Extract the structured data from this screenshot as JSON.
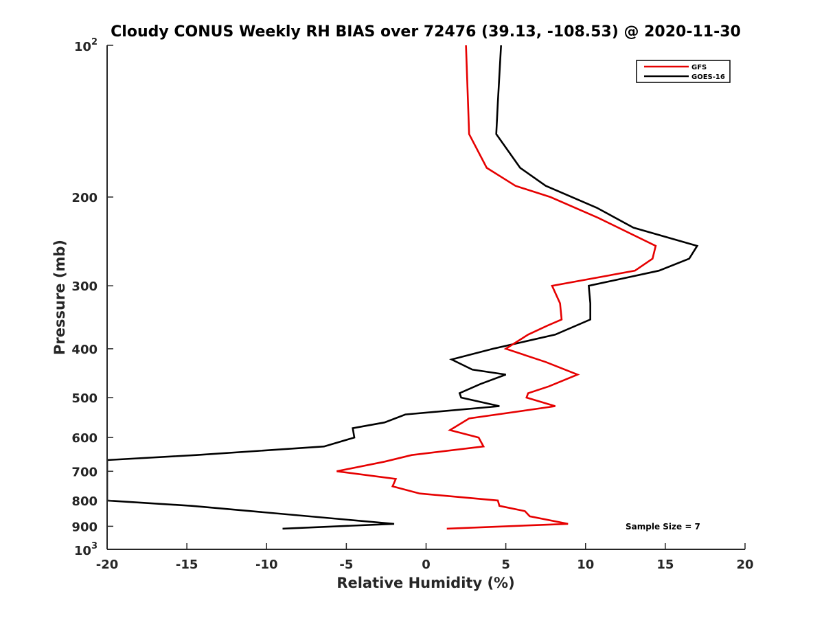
{
  "chart_data": {
    "type": "line",
    "title": "Cloudy CONUS Weekly RH BIAS over 72476 (39.13, -108.53) @ 2020-11-30",
    "xlabel": "Relative Humidity (%)",
    "ylabel": "Pressure (mb)",
    "xlim": [
      -20,
      20
    ],
    "ylim": [
      100,
      1000
    ],
    "yscale": "log",
    "y_reversed": true,
    "grid": false,
    "legend_location": "top-right",
    "x_ticks": [
      "-20",
      "-15",
      "-10",
      "-5",
      "0",
      "5",
      "10",
      "15",
      "20"
    ],
    "x_tick_values": [
      -20,
      -15,
      -10,
      -5,
      0,
      5,
      10,
      15,
      20
    ],
    "y_ticks": [
      {
        "value": 100,
        "base": "10",
        "exp": "2"
      },
      {
        "value": 200,
        "label": "200"
      },
      {
        "value": 300,
        "label": "300"
      },
      {
        "value": 400,
        "label": "400"
      },
      {
        "value": 500,
        "label": "500"
      },
      {
        "value": 600,
        "label": "600"
      },
      {
        "value": 700,
        "label": "700"
      },
      {
        "value": 800,
        "label": "800"
      },
      {
        "value": 900,
        "label": "900"
      },
      {
        "value": 1000,
        "base": "10",
        "exp": "3"
      }
    ],
    "annotation": "Sample Size = 7",
    "series": [
      {
        "name": "GFS",
        "color": "#e60000",
        "points": [
          [
            2.5,
            100
          ],
          [
            2.7,
            150
          ],
          [
            3.8,
            175
          ],
          [
            5.6,
            190
          ],
          [
            7.8,
            200
          ],
          [
            10.8,
            220
          ],
          [
            14.4,
            250
          ],
          [
            14.2,
            265
          ],
          [
            13.1,
            280
          ],
          [
            7.9,
            300
          ],
          [
            8.4,
            325
          ],
          [
            8.5,
            350
          ],
          [
            7.6,
            360
          ],
          [
            6.4,
            375
          ],
          [
            5.0,
            400
          ],
          [
            7.5,
            425
          ],
          [
            9.5,
            450
          ],
          [
            7.7,
            475
          ],
          [
            6.4,
            490
          ],
          [
            6.3,
            500
          ],
          [
            8.1,
            520
          ],
          [
            2.7,
            550
          ],
          [
            1.5,
            580
          ],
          [
            3.3,
            600
          ],
          [
            3.6,
            625
          ],
          [
            -0.9,
            650
          ],
          [
            -2.6,
            670
          ],
          [
            -5.6,
            700
          ],
          [
            -1.9,
            725
          ],
          [
            -2.1,
            750
          ],
          [
            -0.4,
            775
          ],
          [
            4.5,
            800
          ],
          [
            4.6,
            820
          ],
          [
            6.2,
            840
          ],
          [
            6.5,
            860
          ],
          [
            8.9,
            890
          ],
          [
            1.3,
            910
          ]
        ]
      },
      {
        "name": "GOES-16",
        "color": "#000000",
        "points": [
          [
            4.7,
            100
          ],
          [
            4.5,
            130
          ],
          [
            4.4,
            150
          ],
          [
            5.9,
            175
          ],
          [
            7.5,
            190
          ],
          [
            10.7,
            210
          ],
          [
            13.0,
            230
          ],
          [
            17.0,
            250
          ],
          [
            16.5,
            265
          ],
          [
            14.6,
            280
          ],
          [
            10.2,
            300
          ],
          [
            10.3,
            325
          ],
          [
            10.3,
            350
          ],
          [
            8.1,
            375
          ],
          [
            4.2,
            400
          ],
          [
            1.6,
            420
          ],
          [
            2.9,
            440
          ],
          [
            5.0,
            450
          ],
          [
            3.4,
            470
          ],
          [
            2.1,
            490
          ],
          [
            2.2,
            500
          ],
          [
            4.6,
            520
          ],
          [
            -1.3,
            540
          ],
          [
            -2.6,
            560
          ],
          [
            -4.6,
            575
          ],
          [
            -4.5,
            600
          ],
          [
            -6.4,
            625
          ],
          [
            -14.4,
            650
          ],
          [
            -20.0,
            665
          ],
          [
            -20.0,
            800
          ],
          [
            -14.7,
            820
          ],
          [
            -2.0,
            890
          ],
          [
            -9.0,
            910
          ]
        ]
      }
    ]
  }
}
